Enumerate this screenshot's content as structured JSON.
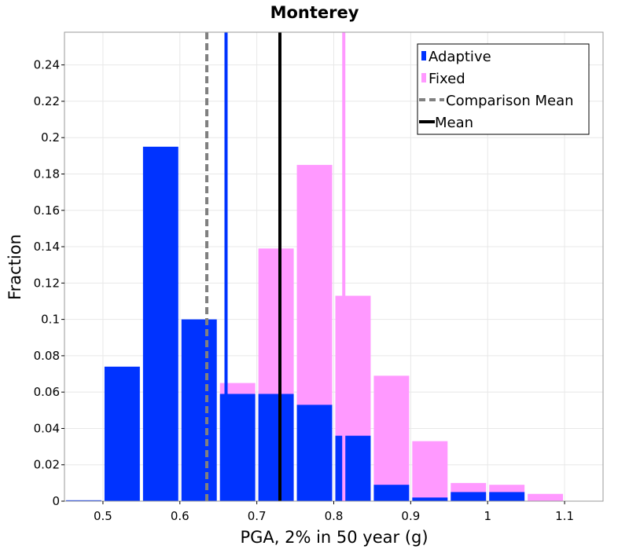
{
  "chart_data": {
    "type": "bar",
    "title": "Monterey",
    "xlabel": "PGA, 2% in 50 year (g)",
    "ylabel": "Fraction",
    "xlim": [
      0.45,
      1.15
    ],
    "ylim": [
      0,
      0.258
    ],
    "bin_width": 0.05,
    "x_ticks": [
      0.5,
      0.6,
      0.7,
      0.8,
      0.9,
      1.0,
      1.1
    ],
    "x_tick_labels": [
      "0.5",
      "0.6",
      "0.7",
      "0.8",
      "0.9",
      "1",
      "1.1"
    ],
    "y_ticks": [
      0,
      0.02,
      0.04,
      0.06,
      0.08,
      0.1,
      0.12,
      0.14,
      0.16,
      0.18,
      0.2,
      0.22,
      0.24
    ],
    "y_tick_labels": [
      "0",
      "0.02",
      "0.04",
      "0.06",
      "0.08",
      "0.1",
      "0.12",
      "0.14",
      "0.16",
      "0.18",
      "0.2",
      "0.22",
      "0.24"
    ],
    "grid": true,
    "legend_position": "top-right",
    "series": [
      {
        "name": "Fixed",
        "color": "#ff99ff",
        "x": [
          0.675,
          0.725,
          0.775,
          0.825,
          0.875,
          0.925,
          0.975,
          1.025,
          1.075
        ],
        "values": [
          0.065,
          0.139,
          0.185,
          0.113,
          0.069,
          0.033,
          0.01,
          0.009,
          0.004
        ]
      },
      {
        "name": "Adaptive",
        "color": "#0033ff",
        "x": [
          0.475,
          0.525,
          0.575,
          0.625,
          0.675,
          0.725,
          0.775,
          0.825,
          0.875,
          0.925,
          0.975,
          1.025
        ],
        "values": [
          0.0005,
          0.074,
          0.195,
          0.1,
          0.059,
          0.059,
          0.053,
          0.036,
          0.009,
          0.002,
          0.005,
          0.005
        ]
      }
    ],
    "reference_lines": [
      {
        "name": "Comparison Mean",
        "x": 0.635,
        "color": "#808080",
        "style": "dashed"
      },
      {
        "name": "Mean",
        "x": 0.73,
        "color": "#000000",
        "style": "solid"
      },
      {
        "name": "Adaptive mean",
        "x": 0.66,
        "color": "#0033ff",
        "style": "solid",
        "in_legend": false
      },
      {
        "name": "Fixed mean",
        "x": 0.813,
        "color": "#ff99ff",
        "style": "solid",
        "in_legend": false
      }
    ],
    "legend": [
      {
        "label": "Adaptive",
        "kind": "box",
        "color": "#0033ff"
      },
      {
        "label": "Fixed",
        "kind": "box",
        "color": "#ff99ff"
      },
      {
        "label": "Comparison Mean",
        "kind": "dash",
        "color": "#808080"
      },
      {
        "label": "Mean",
        "kind": "line",
        "color": "#000000"
      }
    ]
  }
}
